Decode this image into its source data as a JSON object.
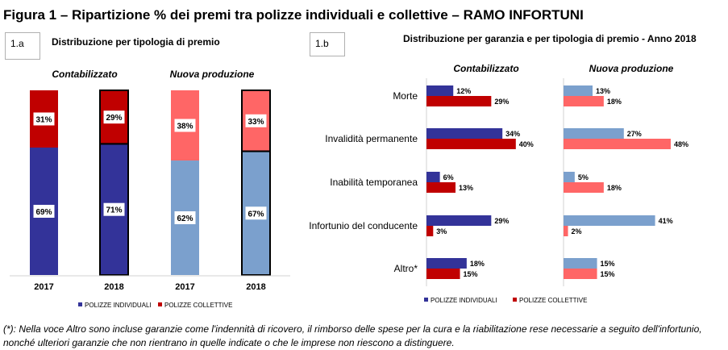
{
  "figure_title": "Figura 1 – Ripartizione % dei premi tra polizze individuali e collettive – RAMO INFORTUNI",
  "footnote": "(*): Nella voce Altro sono incluse garanzie come l'indennità di ricovero, il rimborso delle spese per la cura e la riabilitazione rese necessarie a seguito dell'infortunio, nonché ulteriori garanzie che non rientrano in quelle indicate o che le imprese non riescono a distinguere.",
  "colors": {
    "individuali_contab": "#333399",
    "collettive_contab": "#c00000",
    "individuali_nuova": "#7ba0cd",
    "collettive_nuova": "#ff6666"
  },
  "chart_data": [
    {
      "id": "1.a",
      "type": "bar",
      "stacked": true,
      "percent": true,
      "title": "Distribuzione  per tipologia  di premio",
      "groups": [
        "Contabilizzato",
        "Nuova produzione"
      ],
      "categories": [
        "2017",
        "2018",
        "2017",
        "2018"
      ],
      "series": [
        {
          "name": "POLIZZE INDIVIDUALI",
          "values": [
            69,
            71,
            62,
            67
          ],
          "labels": [
            "69%",
            "71%",
            "62%",
            "67%"
          ]
        },
        {
          "name": "POLIZZE COLLETTIVE",
          "values": [
            31,
            29,
            38,
            33
          ],
          "labels": [
            "31%",
            "29%",
            "38%",
            "33%"
          ]
        }
      ],
      "legend": "bottom"
    },
    {
      "id": "1.b",
      "type": "bar",
      "orientation": "horizontal",
      "title": "Distribuzione  per garanzia  e per tipologia  di premio - Anno 2018",
      "panels": [
        "Contabilizzato",
        "Nuova produzione"
      ],
      "categories": [
        "Morte",
        "Invalidità permanente",
        "Inabilità temporanea",
        "Infortunio del conducente",
        "Altro*"
      ],
      "contabilizzato": {
        "individuali": [
          12,
          34,
          6,
          29,
          18
        ],
        "individuali_labels": [
          "12%",
          "34%",
          "6%",
          "29%",
          "18%"
        ],
        "collettive": [
          29,
          40,
          13,
          3,
          15
        ],
        "collettive_labels": [
          "29%",
          "40%",
          "13%",
          "3%",
          "15%"
        ]
      },
      "nuova_produzione": {
        "individuali": [
          13,
          27,
          5,
          41,
          15
        ],
        "individuali_labels": [
          "13%",
          "27%",
          "5%",
          "41%",
          "15%"
        ],
        "collettive": [
          18,
          48,
          18,
          2,
          15
        ],
        "collettive_labels": [
          "18%",
          "48%",
          "18%",
          "2%",
          "15%"
        ]
      },
      "legend_labels": [
        "POLIZZE INDIVIDUALI",
        "POLIZZE COLLETTIVE"
      ],
      "legend": "bottom"
    }
  ]
}
